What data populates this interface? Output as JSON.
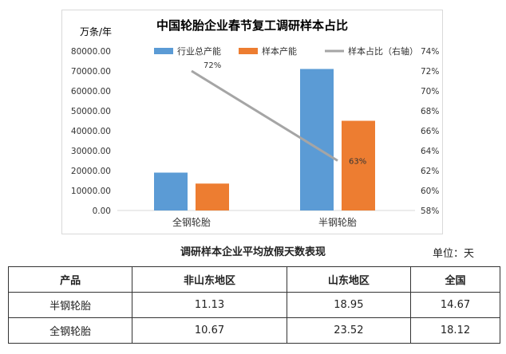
{
  "chart_data": {
    "type": "bar",
    "title": "中国轮胎企业春节复工调研样本占比",
    "ylabel": "万条/年",
    "categories": [
      "全钢轮胎",
      "半钢轮胎"
    ],
    "series": [
      {
        "name": "行业总产能",
        "values": [
          19000,
          71000
        ],
        "color": "#5b9bd5",
        "axis": "left"
      },
      {
        "name": "样本产能",
        "values": [
          13500,
          45000
        ],
        "color": "#ed7d31",
        "axis": "left"
      },
      {
        "name": "样本占比（右轴）",
        "type": "line",
        "values": [
          72,
          63
        ],
        "value_labels": [
          "72%",
          "63%"
        ],
        "color": "#a5a5a5",
        "axis": "right"
      }
    ],
    "ylim": [
      0,
      80000
    ],
    "yticks": [
      "80000.00",
      "70000.00",
      "60000.00",
      "50000.00",
      "40000.00",
      "30000.00",
      "20000.00",
      "10000.00",
      "0.00"
    ],
    "y2lim": [
      58,
      74
    ],
    "y2ticks": [
      "74%",
      "72%",
      "70%",
      "68%",
      "66%",
      "64%",
      "62%",
      "60%",
      "58%"
    ],
    "legend": "top",
    "grid": false
  },
  "table": {
    "caption": "调研样本企业平均放假天数表现",
    "unit": "单位：天",
    "headers": [
      "产品",
      "非山东地区",
      "山东地区",
      "全国"
    ],
    "rows": [
      [
        "半钢轮胎",
        "11.13",
        "18.95",
        "14.67"
      ],
      [
        "全钢轮胎",
        "10.67",
        "23.52",
        "18.12"
      ]
    ]
  }
}
